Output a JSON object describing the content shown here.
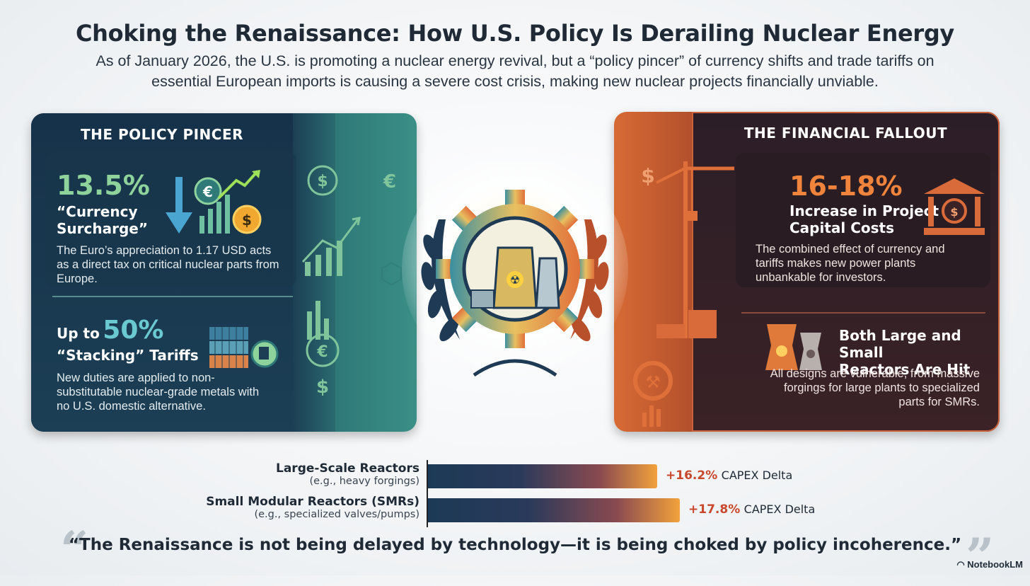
{
  "header": {
    "title": "Choking the Renaissance: How U.S. Policy Is Derailing Nuclear Energy",
    "subtitle": "As of January 2026, the U.S. is promoting a nuclear energy revival, but a “policy pincer” of currency shifts and trade tariffs on essential European imports is causing a severe cost crisis, making new nuclear projects financially unviable."
  },
  "left_panel": {
    "heading": "THE POLICY PINCER",
    "stat1": {
      "value": "13.5%",
      "label_line1": "“Currency",
      "label_line2": "Surcharge”",
      "description": "The Euro’s appreciation to 1.17 USD acts as a direct tax on critical nuclear parts from Europe."
    },
    "stat2": {
      "prefix": "Up to",
      "value": "50%",
      "label": "“Stacking” Tariffs",
      "description": "New duties are applied to non-substitutable nuclear-grade metals with no U.S. domestic alternative."
    },
    "side_symbols": [
      "$",
      "€",
      "€",
      "$"
    ]
  },
  "right_panel": {
    "heading": "THE FINANCIAL FALLOUT",
    "stat1": {
      "value": "16-18%",
      "label_line1": "Increase in Project",
      "label_line2": "Capital Costs",
      "description": "The combined effect of currency and tariffs makes new power plants unbankable for investors."
    },
    "stat2": {
      "label_line1": "Both Large and Small",
      "label_line2": "Reactors Are Hit",
      "description": "All designs are vulnerable, from massive forgings for large plants to specialized parts for SMRs."
    }
  },
  "chart_data": {
    "type": "bar",
    "orientation": "horizontal",
    "categories": [
      "Large-Scale Reactors",
      "Small Modular Reactors (SMRs)"
    ],
    "category_notes": [
      "(e.g., heavy forgings)",
      "(e.g., specialized valves/pumps)"
    ],
    "values": [
      16.2,
      17.8
    ],
    "value_labels": [
      "+16.2%",
      "+17.8%"
    ],
    "value_suffix": "CAPEX Delta",
    "xlim": [
      0,
      19.5
    ],
    "grid": false
  },
  "quote": {
    "text": "“The Renaissance is not being delayed by technology—it is being choked by policy incoherence.”"
  },
  "brand": {
    "name": "NotebookLM"
  },
  "colors": {
    "left_accent": "#8fd39c",
    "right_accent": "#f0843c",
    "bar_value": "#c9472c"
  }
}
